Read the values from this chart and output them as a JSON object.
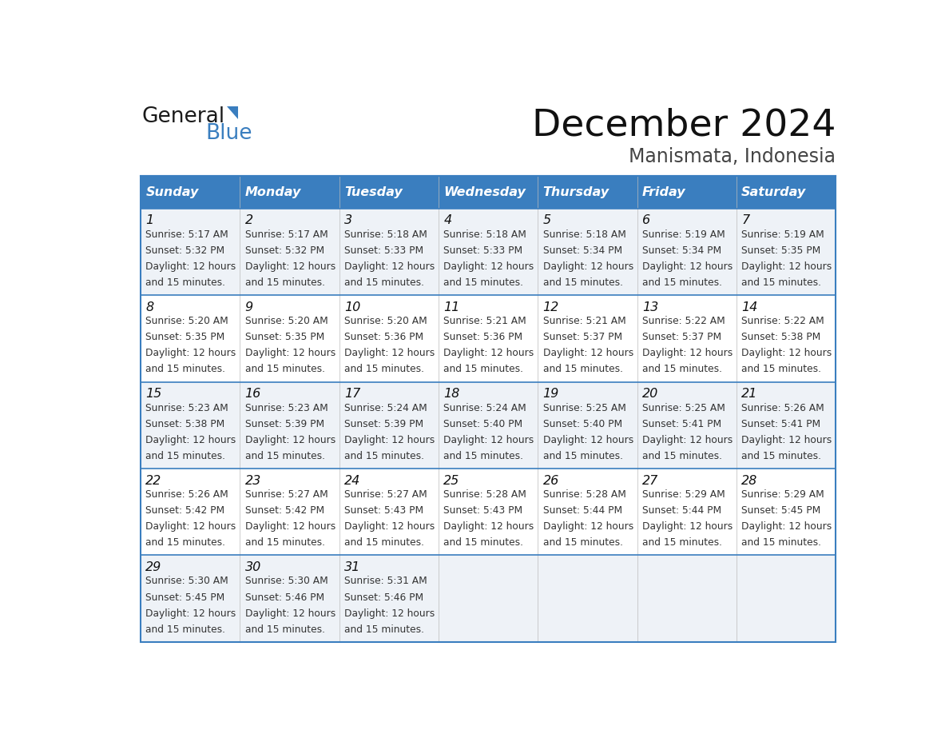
{
  "title": "December 2024",
  "subtitle": "Manismata, Indonesia",
  "header_color": "#3a7ebf",
  "header_text_color": "#ffffff",
  "day_names": [
    "Sunday",
    "Monday",
    "Tuesday",
    "Wednesday",
    "Thursday",
    "Friday",
    "Saturday"
  ],
  "alt_row_color": "#eef2f7",
  "white_color": "#ffffff",
  "border_color": "#3a7ebf",
  "line_color": "#3a7ebf",
  "text_color": "#333333",
  "days": [
    {
      "date": 1,
      "col": 0,
      "row": 0,
      "sunrise": "5:17 AM",
      "sunset": "5:32 PM"
    },
    {
      "date": 2,
      "col": 1,
      "row": 0,
      "sunrise": "5:17 AM",
      "sunset": "5:32 PM"
    },
    {
      "date": 3,
      "col": 2,
      "row": 0,
      "sunrise": "5:18 AM",
      "sunset": "5:33 PM"
    },
    {
      "date": 4,
      "col": 3,
      "row": 0,
      "sunrise": "5:18 AM",
      "sunset": "5:33 PM"
    },
    {
      "date": 5,
      "col": 4,
      "row": 0,
      "sunrise": "5:18 AM",
      "sunset": "5:34 PM"
    },
    {
      "date": 6,
      "col": 5,
      "row": 0,
      "sunrise": "5:19 AM",
      "sunset": "5:34 PM"
    },
    {
      "date": 7,
      "col": 6,
      "row": 0,
      "sunrise": "5:19 AM",
      "sunset": "5:35 PM"
    },
    {
      "date": 8,
      "col": 0,
      "row": 1,
      "sunrise": "5:20 AM",
      "sunset": "5:35 PM"
    },
    {
      "date": 9,
      "col": 1,
      "row": 1,
      "sunrise": "5:20 AM",
      "sunset": "5:35 PM"
    },
    {
      "date": 10,
      "col": 2,
      "row": 1,
      "sunrise": "5:20 AM",
      "sunset": "5:36 PM"
    },
    {
      "date": 11,
      "col": 3,
      "row": 1,
      "sunrise": "5:21 AM",
      "sunset": "5:36 PM"
    },
    {
      "date": 12,
      "col": 4,
      "row": 1,
      "sunrise": "5:21 AM",
      "sunset": "5:37 PM"
    },
    {
      "date": 13,
      "col": 5,
      "row": 1,
      "sunrise": "5:22 AM",
      "sunset": "5:37 PM"
    },
    {
      "date": 14,
      "col": 6,
      "row": 1,
      "sunrise": "5:22 AM",
      "sunset": "5:38 PM"
    },
    {
      "date": 15,
      "col": 0,
      "row": 2,
      "sunrise": "5:23 AM",
      "sunset": "5:38 PM"
    },
    {
      "date": 16,
      "col": 1,
      "row": 2,
      "sunrise": "5:23 AM",
      "sunset": "5:39 PM"
    },
    {
      "date": 17,
      "col": 2,
      "row": 2,
      "sunrise": "5:24 AM",
      "sunset": "5:39 PM"
    },
    {
      "date": 18,
      "col": 3,
      "row": 2,
      "sunrise": "5:24 AM",
      "sunset": "5:40 PM"
    },
    {
      "date": 19,
      "col": 4,
      "row": 2,
      "sunrise": "5:25 AM",
      "sunset": "5:40 PM"
    },
    {
      "date": 20,
      "col": 5,
      "row": 2,
      "sunrise": "5:25 AM",
      "sunset": "5:41 PM"
    },
    {
      "date": 21,
      "col": 6,
      "row": 2,
      "sunrise": "5:26 AM",
      "sunset": "5:41 PM"
    },
    {
      "date": 22,
      "col": 0,
      "row": 3,
      "sunrise": "5:26 AM",
      "sunset": "5:42 PM"
    },
    {
      "date": 23,
      "col": 1,
      "row": 3,
      "sunrise": "5:27 AM",
      "sunset": "5:42 PM"
    },
    {
      "date": 24,
      "col": 2,
      "row": 3,
      "sunrise": "5:27 AM",
      "sunset": "5:43 PM"
    },
    {
      "date": 25,
      "col": 3,
      "row": 3,
      "sunrise": "5:28 AM",
      "sunset": "5:43 PM"
    },
    {
      "date": 26,
      "col": 4,
      "row": 3,
      "sunrise": "5:28 AM",
      "sunset": "5:44 PM"
    },
    {
      "date": 27,
      "col": 5,
      "row": 3,
      "sunrise": "5:29 AM",
      "sunset": "5:44 PM"
    },
    {
      "date": 28,
      "col": 6,
      "row": 3,
      "sunrise": "5:29 AM",
      "sunset": "5:45 PM"
    },
    {
      "date": 29,
      "col": 0,
      "row": 4,
      "sunrise": "5:30 AM",
      "sunset": "5:45 PM"
    },
    {
      "date": 30,
      "col": 1,
      "row": 4,
      "sunrise": "5:30 AM",
      "sunset": "5:46 PM"
    },
    {
      "date": 31,
      "col": 2,
      "row": 4,
      "sunrise": "5:31 AM",
      "sunset": "5:46 PM"
    }
  ]
}
